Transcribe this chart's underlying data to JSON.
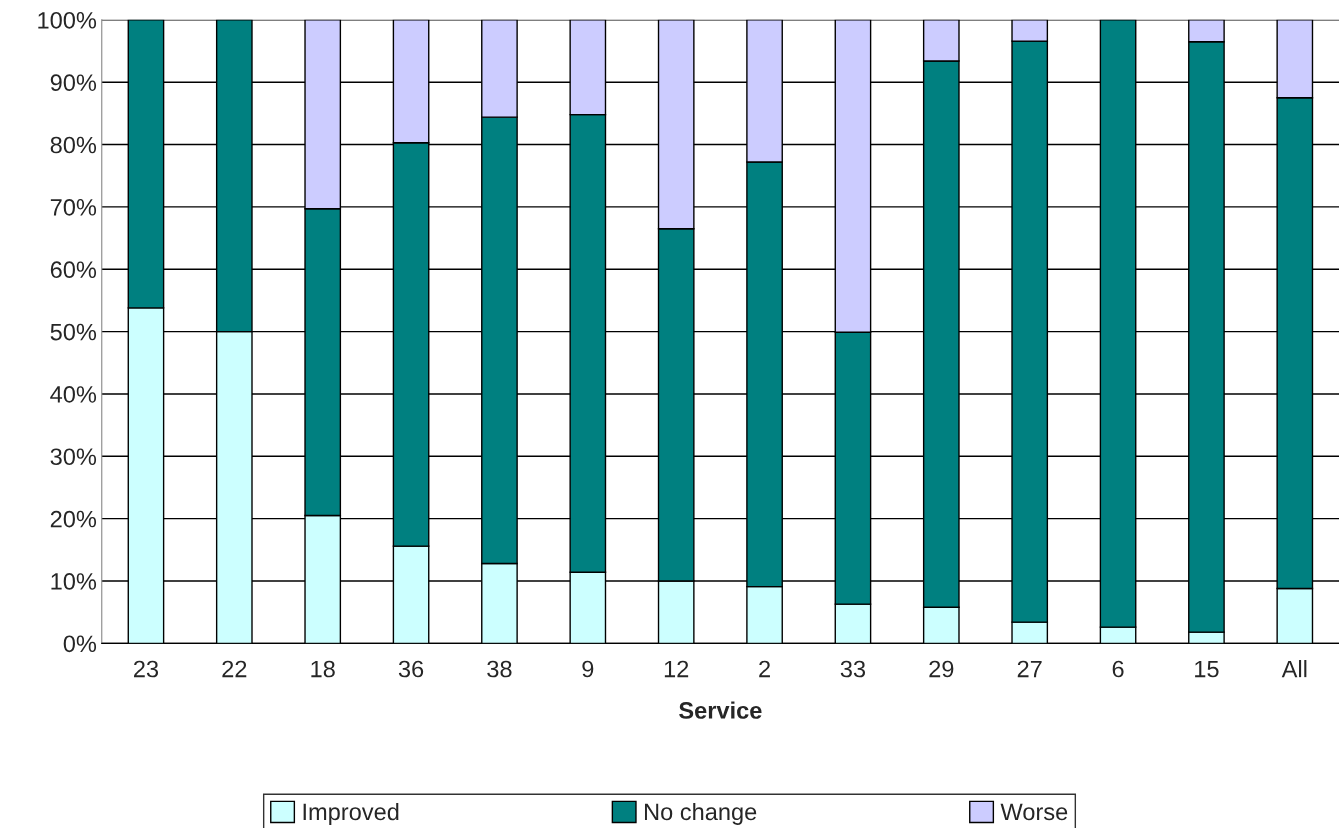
{
  "chart_data": {
    "type": "bar",
    "stacked": true,
    "xlabel": "Service",
    "categories": [
      "23",
      "22",
      "18",
      "36",
      "38",
      "9",
      "12",
      "2",
      "33",
      "29",
      "27",
      "6",
      "15",
      "All"
    ],
    "series": [
      {
        "name": "Improved",
        "color": "#ccffff",
        "values": [
          53.8,
          50,
          20.5,
          15.6,
          12.8,
          11.4,
          10.0,
          9.1,
          6.3,
          5.8,
          3.4,
          2.6,
          1.8,
          8.8
        ]
      },
      {
        "name": "No change",
        "color": "#008080",
        "values": [
          46.2,
          50,
          49.2,
          64.7,
          71.6,
          73.4,
          56.5,
          68.1,
          43.6,
          87.6,
          93.2,
          97.4,
          94.7,
          78.7
        ]
      },
      {
        "name": "Worse",
        "color": "#ccccff",
        "values": [
          0,
          0,
          30.3,
          19.7,
          15.6,
          15.2,
          33.5,
          22.8,
          50.1,
          6.6,
          3.4,
          0,
          3.5,
          12.5
        ]
      }
    ],
    "ylim": [
      0,
      100
    ],
    "yticks": [
      {
        "value": 0,
        "label": "0%"
      },
      {
        "value": 10,
        "label": "10%"
      },
      {
        "value": 20,
        "label": "20%"
      },
      {
        "value": 30,
        "label": "30%"
      },
      {
        "value": 40,
        "label": "40%"
      },
      {
        "value": 50,
        "label": "50%"
      },
      {
        "value": 60,
        "label": "60%"
      },
      {
        "value": 70,
        "label": "70%"
      },
      {
        "value": 80,
        "label": "80%"
      },
      {
        "value": 90,
        "label": "90%"
      },
      {
        "value": 100,
        "label": "100%"
      }
    ],
    "grid": "y",
    "legend": "bottom"
  }
}
